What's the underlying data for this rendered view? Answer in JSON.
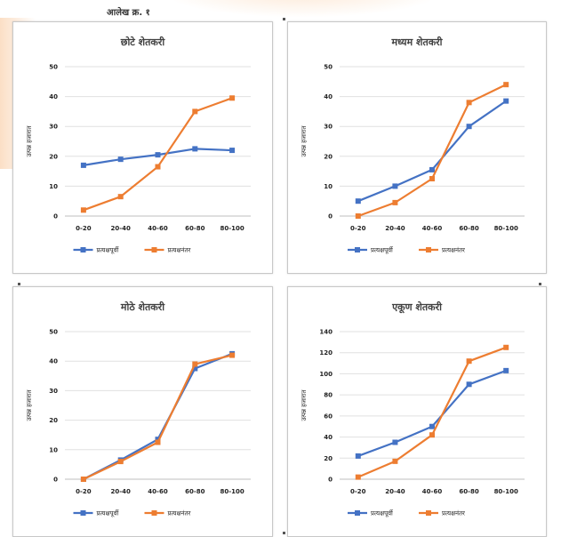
{
  "header": {
    "caption": "आलेख क्र. १"
  },
  "series_colors": {
    "first": "#4472C4",
    "second": "#ED7D31"
  },
  "chart_data": [
    {
      "type": "line",
      "title": "छोटे शेतकरी",
      "xlabel": "",
      "ylabel": "उत्पन्न हजारात",
      "categories": [
        "0-20",
        "20-40",
        "40-60",
        "60-80",
        "80-100"
      ],
      "ylim": [
        0,
        50
      ],
      "yticks": [
        0,
        10,
        20,
        30,
        40,
        50
      ],
      "series": [
        {
          "name": "प्रत्यक्षपूर्वी",
          "values": [
            17,
            19,
            20.5,
            22.5,
            22
          ]
        },
        {
          "name": "प्रत्यक्षनंतर",
          "values": [
            2,
            6.5,
            16.5,
            35,
            39.5
          ]
        }
      ],
      "legend": "bottom",
      "grid": true
    },
    {
      "type": "line",
      "title": "मध्यम शेतकरी",
      "xlabel": "",
      "ylabel": "उत्पन्न हजारात",
      "categories": [
        "0-20",
        "20-40",
        "40-60",
        "60-80",
        "80-100"
      ],
      "ylim": [
        0,
        50
      ],
      "yticks": [
        0,
        10,
        20,
        30,
        40,
        50
      ],
      "series": [
        {
          "name": "प्रत्यक्षपूर्वी",
          "values": [
            5,
            10,
            15.5,
            30,
            38.5
          ]
        },
        {
          "name": "प्रत्यक्षनंतर",
          "values": [
            0,
            4.5,
            12.5,
            38,
            44
          ]
        }
      ],
      "legend": "bottom",
      "grid": true
    },
    {
      "type": "line",
      "title": "मोठे शेतकरी",
      "xlabel": "",
      "ylabel": "उत्पन्न हजारात",
      "categories": [
        "0-20",
        "20-40",
        "40-60",
        "60-80",
        "80-100"
      ],
      "ylim": [
        0,
        50
      ],
      "yticks": [
        0,
        10,
        20,
        30,
        40,
        50
      ],
      "series": [
        {
          "name": "प्रत्यक्षपूर्वी",
          "values": [
            0,
            6.5,
            13.5,
            37.5,
            42.5
          ]
        },
        {
          "name": "प्रत्यक्षनंतर",
          "values": [
            0,
            6,
            12.5,
            39,
            42
          ]
        }
      ],
      "legend": "bottom",
      "grid": true
    },
    {
      "type": "line",
      "title": "एकूण शेतकरी",
      "xlabel": "",
      "ylabel": "उत्पन्न हजारात",
      "categories": [
        "0-20",
        "20-40",
        "40-60",
        "60-80",
        "80-100"
      ],
      "ylim": [
        0,
        140
      ],
      "yticks": [
        0,
        20,
        40,
        60,
        80,
        100,
        120,
        140
      ],
      "series": [
        {
          "name": "प्रत्यक्षपूर्वी",
          "values": [
            22,
            35,
            50,
            90,
            103
          ]
        },
        {
          "name": "प्रत्यक्षनंतर",
          "values": [
            2,
            17,
            42,
            112,
            125
          ]
        }
      ],
      "legend": "bottom",
      "grid": true
    }
  ]
}
